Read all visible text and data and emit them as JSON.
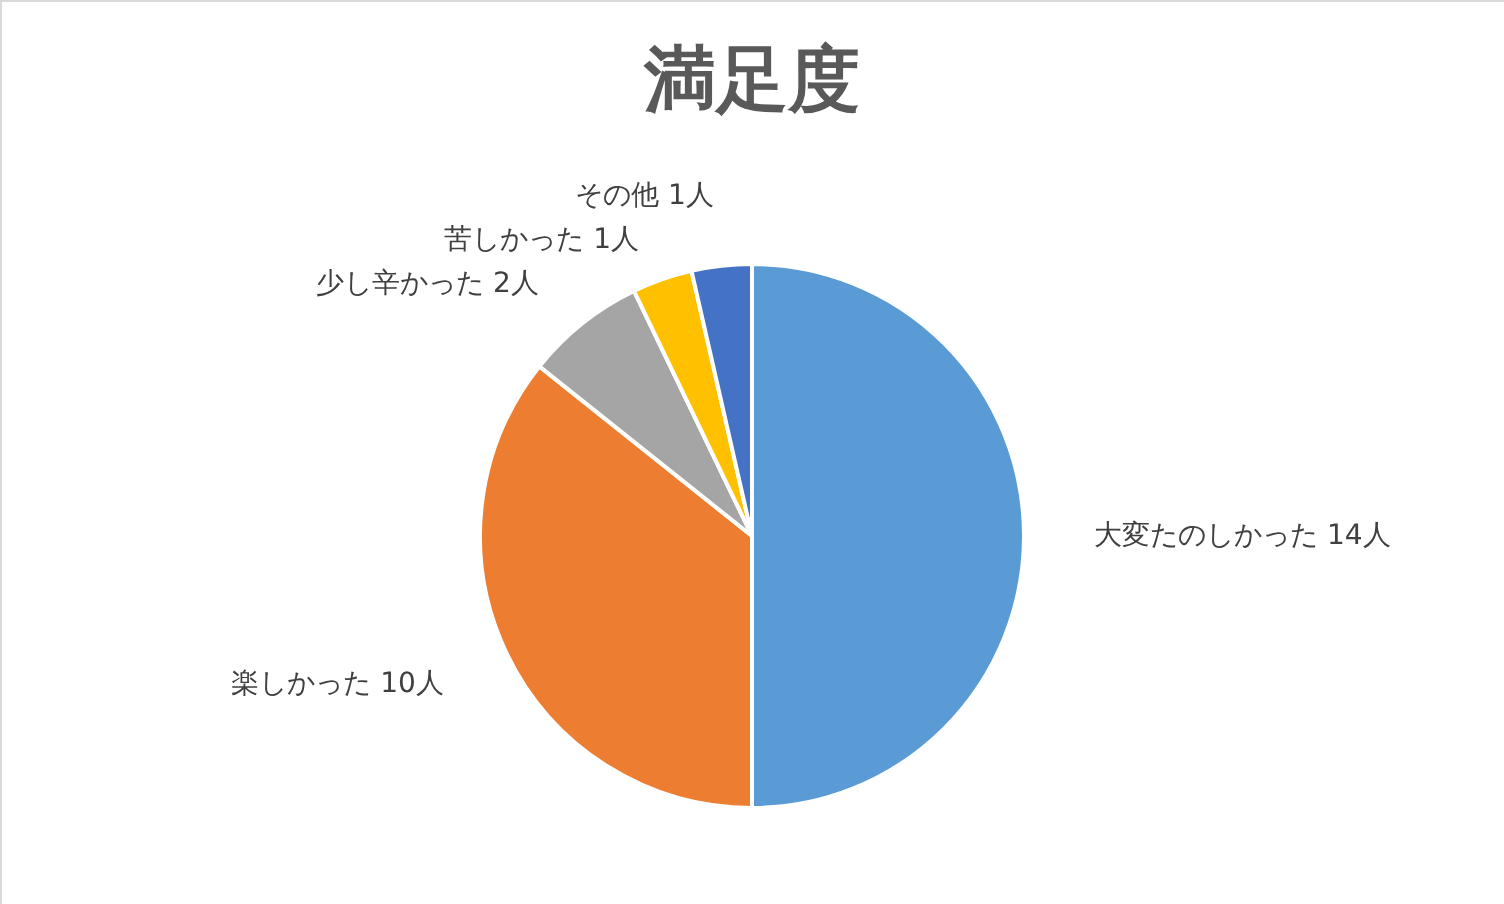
{
  "chart_data": {
    "type": "pie",
    "title": "満足度",
    "categories": [
      "大変たのしかった",
      "楽しかった",
      "少し辛かった",
      "苦しかった",
      "その他"
    ],
    "values": [
      14,
      10,
      2,
      1,
      1
    ],
    "value_labels": [
      "14人",
      "10人",
      "2人",
      "1人",
      "1人"
    ],
    "colors": [
      "#5b9bd5",
      "#ed7d31",
      "#a5a5a5",
      "#ffc000",
      "#4472c4"
    ]
  }
}
